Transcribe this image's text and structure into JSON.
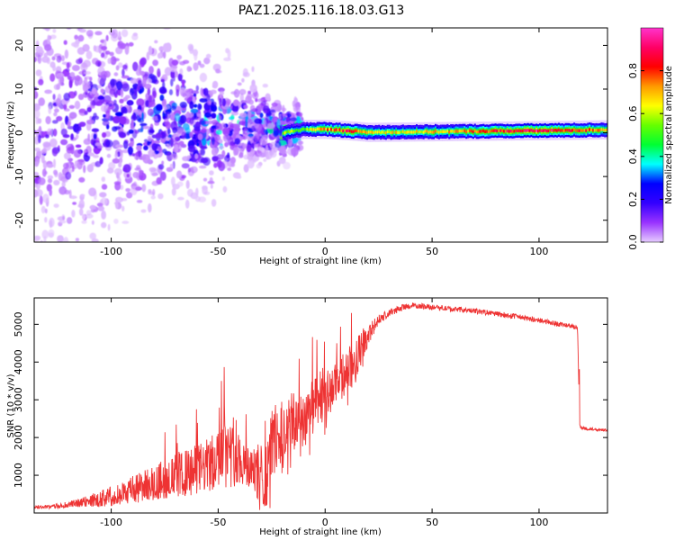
{
  "title": "PAZ1.2025.116.18.03.G13",
  "chart_data": [
    {
      "type": "heatmap",
      "xlabel": "Height of straight line (km)",
      "ylabel": "Frequency (Hz)",
      "xlim": [
        -136,
        132
      ],
      "ylim": [
        -25,
        24
      ],
      "x_ticks": [
        -100,
        -50,
        0,
        50,
        100
      ],
      "y_ticks": [
        -20,
        -10,
        0,
        10,
        20
      ],
      "colorbar": {
        "label": "Normalized spectral amplitude",
        "range": [
          0,
          1
        ],
        "ticks": [
          0.0,
          0.2,
          0.4,
          0.6,
          0.8
        ],
        "colors": [
          "#e6ccff",
          "#9933ff",
          "#3300ff",
          "#0000ff",
          "#00ffff",
          "#00ff33",
          "#66ff00",
          "#ffff00",
          "#ff9900",
          "#ff0000",
          "#ff0066",
          "#ff33cc"
        ]
      },
      "ridge": {
        "x": [
          -136,
          -120,
          -100,
          -90,
          -75,
          -60,
          -50,
          -40,
          -30,
          -20,
          -10,
          0,
          10,
          20,
          40,
          60,
          80,
          100,
          120,
          132
        ],
        "frequency": [
          1,
          2,
          5,
          4,
          3,
          2,
          1,
          2,
          2,
          0,
          0.8,
          0.8,
          0.5,
          0.1,
          0.2,
          0.3,
          0.4,
          0.5,
          0.6,
          0.7
        ],
        "amplitude": [
          0.15,
          0.2,
          0.25,
          0.3,
          0.35,
          0.35,
          0.45,
          0.4,
          0.35,
          0.6,
          0.55,
          0.75,
          0.85,
          0.7,
          0.65,
          0.7,
          0.85,
          0.9,
          0.8,
          0.75
        ]
      }
    },
    {
      "type": "line",
      "xlabel": "Height of straight line (km)",
      "ylabel": "SNR (10 * v/v)",
      "xlim": [
        -136,
        132
      ],
      "ylim": [
        0,
        5700
      ],
      "x_ticks": [
        -100,
        -50,
        0,
        50,
        100
      ],
      "y_ticks": [
        1000,
        2000,
        3000,
        4000,
        5000
      ],
      "series": [
        {
          "color": "#ee3333",
          "x": [
            -136,
            -125,
            -115,
            -105,
            -95,
            -85,
            -75,
            -65,
            -55,
            -50,
            -45,
            -40,
            -35,
            -30,
            -27,
            -25,
            -20,
            -15,
            -10,
            -5,
            0,
            5,
            10,
            15,
            20,
            25,
            30,
            35,
            40,
            50,
            60,
            70,
            80,
            90,
            100,
            110,
            115,
            118,
            119,
            120,
            125,
            132
          ],
          "values": [
            150,
            180,
            260,
            380,
            520,
            720,
            900,
            1050,
            1250,
            1400,
            1550,
            1450,
            1200,
            1000,
            1050,
            1900,
            2100,
            2350,
            2550,
            2800,
            3050,
            3350,
            3750,
            4150,
            4700,
            5100,
            5300,
            5420,
            5500,
            5460,
            5400,
            5350,
            5280,
            5200,
            5100,
            5000,
            4950,
            4900,
            2300,
            2250,
            2220,
            2200
          ],
          "noise": [
            40,
            60,
            120,
            220,
            320,
            420,
            520,
            620,
            720,
            800,
            900,
            700,
            600,
            850,
            900,
            950,
            900,
            850,
            800,
            750,
            700,
            650,
            600,
            500,
            300,
            150,
            100,
            90,
            80,
            70,
            70,
            70,
            70,
            70,
            70,
            70,
            60,
            60,
            50,
            50,
            40,
            40
          ]
        }
      ]
    }
  ]
}
